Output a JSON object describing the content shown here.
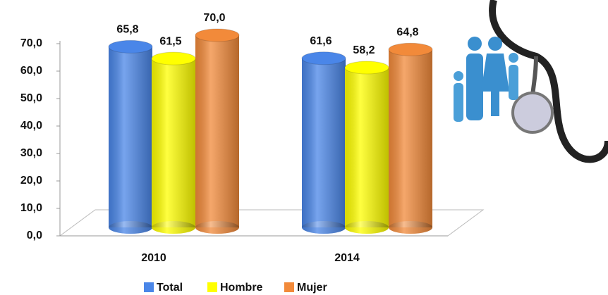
{
  "chart_data": {
    "type": "bar3d",
    "categories": [
      "2010",
      "2014"
    ],
    "series": [
      {
        "name": "Total",
        "color": "#4a86e8",
        "values": [
          65.8,
          61.6
        ],
        "value_labels": [
          "65,8",
          "61,6"
        ]
      },
      {
        "name": "Hombre",
        "color": "#ffff00",
        "values": [
          61.5,
          58.2
        ],
        "value_labels": [
          "61,5",
          "58,2"
        ]
      },
      {
        "name": "Mujer",
        "color": "#f28a3a",
        "values": [
          70.0,
          64.8
        ],
        "value_labels": [
          "70,0",
          "64,8"
        ]
      }
    ],
    "ylim": [
      0,
      70
    ],
    "yticks": [
      {
        "value": 0,
        "label": "0,0"
      },
      {
        "value": 10,
        "label": "10,0"
      },
      {
        "value": 20,
        "label": "20,0"
      },
      {
        "value": 30,
        "label": "30,0"
      },
      {
        "value": 40,
        "label": "40,0"
      },
      {
        "value": 50,
        "label": "50,0"
      },
      {
        "value": 60,
        "label": "60,0"
      },
      {
        "value": 70,
        "label": "70,0"
      }
    ],
    "legend": "bottom"
  }
}
